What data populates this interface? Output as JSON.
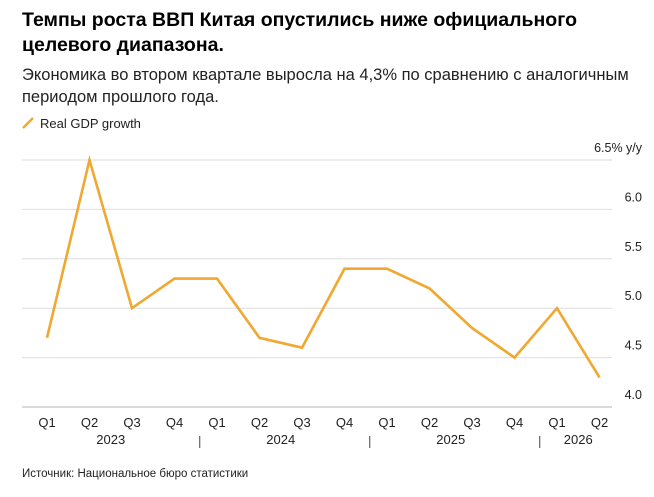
{
  "header": {
    "title": "Темпы роста ВВП Китая опустились ниже официального целевого диапазона.",
    "subtitle": "Экономика во втором квартале выросла на 4,3% по сравнению с аналогичным периодом прошлого года."
  },
  "footer": {
    "source": "Источник: Национальное бюро статистики"
  },
  "chart_data": {
    "type": "line",
    "title": "",
    "xlabel": "",
    "ylabel": "",
    "y_unit_label": "y/y",
    "x": [
      "Q1",
      "Q2",
      "Q3",
      "Q4",
      "Q1",
      "Q2",
      "Q3",
      "Q4",
      "Q1",
      "Q2",
      "Q3",
      "Q4",
      "Q1",
      "Q2"
    ],
    "year_groups": [
      {
        "label": "2023",
        "start": 0,
        "end": 3
      },
      {
        "label": "2024",
        "start": 4,
        "end": 7
      },
      {
        "label": "2025",
        "start": 8,
        "end": 11
      },
      {
        "label": "2026",
        "start": 12,
        "end": 13
      }
    ],
    "series": [
      {
        "name": "Real GDP growth",
        "color": "#f0a830",
        "values": [
          4.7,
          6.5,
          5.0,
          5.3,
          5.3,
          4.7,
          4.6,
          5.4,
          5.4,
          5.2,
          4.8,
          4.5,
          5.0,
          4.3
        ]
      }
    ],
    "ylim": [
      4.0,
      6.5
    ],
    "yticks": [
      4.0,
      4.5,
      5.0,
      5.5,
      6.0,
      6.5
    ],
    "ytick_labels": [
      "4.0",
      "4.5",
      "5.0",
      "5.5",
      "6.0",
      "6.5%"
    ],
    "grid": true,
    "legend_position": "top-left"
  }
}
